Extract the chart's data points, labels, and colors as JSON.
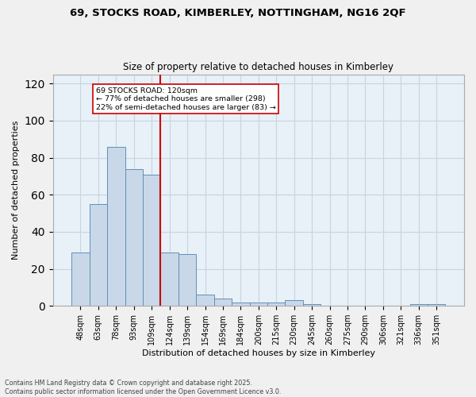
{
  "title1": "69, STOCKS ROAD, KIMBERLEY, NOTTINGHAM, NG16 2QF",
  "title2": "Size of property relative to detached houses in Kimberley",
  "xlabel": "Distribution of detached houses by size in Kimberley",
  "ylabel": "Number of detached properties",
  "categories": [
    "48sqm",
    "63sqm",
    "78sqm",
    "93sqm",
    "109sqm",
    "124sqm",
    "139sqm",
    "154sqm",
    "169sqm",
    "184sqm",
    "200sqm",
    "215sqm",
    "230sqm",
    "245sqm",
    "260sqm",
    "275sqm",
    "290sqm",
    "306sqm",
    "321sqm",
    "336sqm",
    "351sqm"
  ],
  "values": [
    29,
    55,
    86,
    74,
    71,
    29,
    28,
    6,
    4,
    2,
    2,
    2,
    3,
    1,
    0,
    0,
    0,
    0,
    0,
    1,
    1
  ],
  "bar_color": "#c8d8e8",
  "bar_edge_color": "#6090b8",
  "vline_color": "#cc0000",
  "annotation_text": "69 STOCKS ROAD: 120sqm\n← 77% of detached houses are smaller (298)\n22% of semi-detached houses are larger (83) →",
  "ylim": [
    0,
    125
  ],
  "yticks": [
    0,
    20,
    40,
    60,
    80,
    100,
    120
  ],
  "grid_color": "#c8d4e0",
  "background_color": "#e8f0f8",
  "fig_background": "#f0f0f0",
  "footer1": "Contains HM Land Registry data © Crown copyright and database right 2025.",
  "footer2": "Contains public sector information licensed under the Open Government Licence v3.0."
}
